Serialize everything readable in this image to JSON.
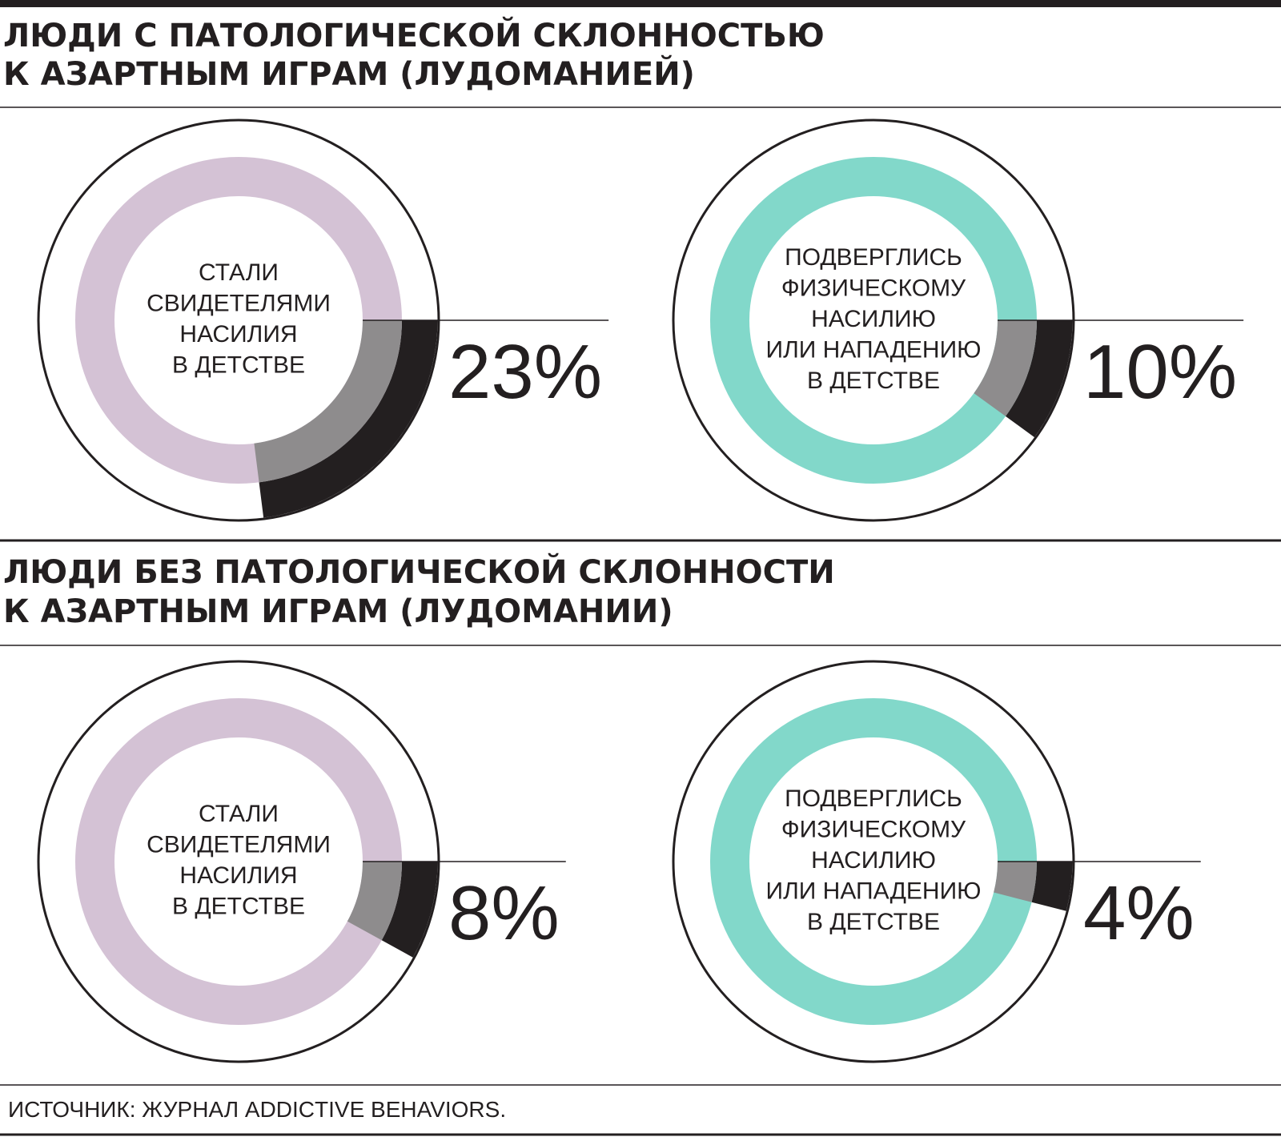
{
  "sections": [
    {
      "title_lines": [
        "ЛЮДИ С ПАТОЛОГИЧЕСКОЙ СКЛОННОСТЬЮ",
        "К АЗАРТНЫМ ИГРАМ (ЛУДОМАНИЕЙ)"
      ]
    },
    {
      "title_lines": [
        "ЛЮДИ БЕЗ ПАТОЛОГИЧЕСКОЙ СКЛОННОСТИ",
        "К АЗАРТНЫМ ИГРАМ (ЛУДОМАНИИ)"
      ]
    }
  ],
  "chart_data": [
    {
      "type": "donut",
      "label_lines": [
        "СТАЛИ",
        "СВИДЕТЕЛЯМИ",
        "НАСИЛИЯ",
        "В ДЕТСТВЕ"
      ],
      "values": [
        23
      ],
      "value_labels": [
        "23%"
      ],
      "color": "#d4c2d5",
      "highlight_colors": [
        "#231f20",
        "#8e8c8d"
      ]
    },
    {
      "type": "donut",
      "label_lines": [
        "ПОДВЕРГЛИСЬ",
        "ФИЗИЧЕСКОМУ",
        "НАСИЛИЮ",
        "ИЛИ НАПАДЕНИЮ",
        "В ДЕТСТВЕ"
      ],
      "values": [
        10
      ],
      "value_labels": [
        "10%"
      ],
      "color": "#82d8ca",
      "highlight_colors": [
        "#231f20",
        "#8e8c8d"
      ]
    },
    {
      "type": "donut",
      "label_lines": [
        "СТАЛИ",
        "СВИДЕТЕЛЯМИ",
        "НАСИЛИЯ",
        "В ДЕТСТВЕ"
      ],
      "values": [
        8
      ],
      "value_labels": [
        "8%"
      ],
      "color": "#d4c2d5",
      "highlight_colors": [
        "#231f20",
        "#8e8c8d"
      ]
    },
    {
      "type": "donut",
      "label_lines": [
        "ПОДВЕРГЛИСЬ",
        "ФИЗИЧЕСКОМУ",
        "НАСИЛИЮ",
        "ИЛИ НАПАДЕНИЮ",
        "В ДЕТСТВЕ"
      ],
      "values": [
        4
      ],
      "value_labels": [
        "4%"
      ],
      "color": "#82d8ca",
      "highlight_colors": [
        "#231f20",
        "#8e8c8d"
      ]
    }
  ],
  "source": "ИСТОЧНИК: ЖУРНАЛ ADDICTIVE BEHAVIORS."
}
